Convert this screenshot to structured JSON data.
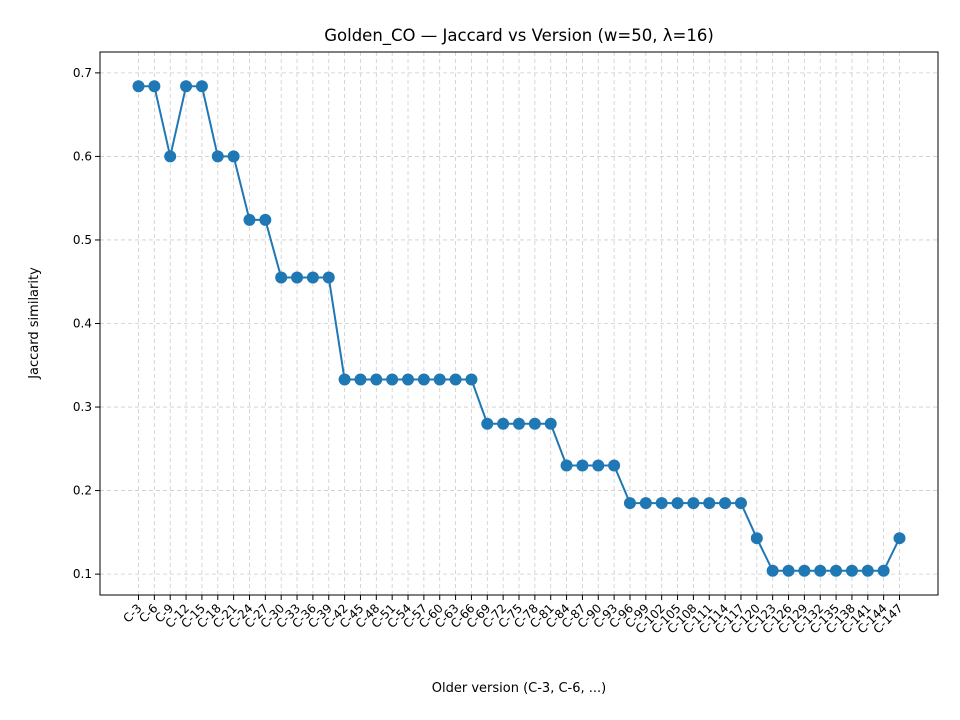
{
  "chart_data": {
    "type": "line",
    "title": "Golden_CO — Jaccard vs Version (w=50, λ=16)",
    "xlabel": "Older version (C-3, C-6, ...)",
    "ylabel": "Jaccard similarity",
    "ylim": [
      0.075,
      0.725
    ],
    "yticks": [
      0.1,
      0.2,
      0.3,
      0.4,
      0.5,
      0.6,
      0.7
    ],
    "grid": true,
    "marker": "circle",
    "color": "#1f77b4",
    "categories": [
      "C-3",
      "C-6",
      "C-9",
      "C-12",
      "C-15",
      "C-18",
      "C-21",
      "C-24",
      "C-27",
      "C-30",
      "C-33",
      "C-36",
      "C-39",
      "C-42",
      "C-45",
      "C-48",
      "C-51",
      "C-54",
      "C-57",
      "C-60",
      "C-63",
      "C-66",
      "C-69",
      "C-72",
      "C-75",
      "C-78",
      "C-81",
      "C-84",
      "C-87",
      "C-90",
      "C-93",
      "C-96",
      "C-99",
      "C-102",
      "C-105",
      "C-108",
      "C-111",
      "C-114",
      "C-117",
      "C-120",
      "C-123",
      "C-126",
      "C-129",
      "C-132",
      "C-135",
      "C-138",
      "C-141",
      "C-144",
      "C-147"
    ],
    "values": [
      0.684,
      0.684,
      0.6,
      0.684,
      0.684,
      0.6,
      0.6,
      0.524,
      0.524,
      0.455,
      0.455,
      0.455,
      0.455,
      0.333,
      0.333,
      0.333,
      0.333,
      0.333,
      0.333,
      0.333,
      0.333,
      0.333,
      0.28,
      0.28,
      0.28,
      0.28,
      0.28,
      0.23,
      0.23,
      0.23,
      0.23,
      0.185,
      0.185,
      0.185,
      0.185,
      0.185,
      0.185,
      0.185,
      0.185,
      0.143,
      0.104,
      0.104,
      0.104,
      0.104,
      0.104,
      0.104,
      0.104,
      0.104,
      0.143
    ]
  }
}
